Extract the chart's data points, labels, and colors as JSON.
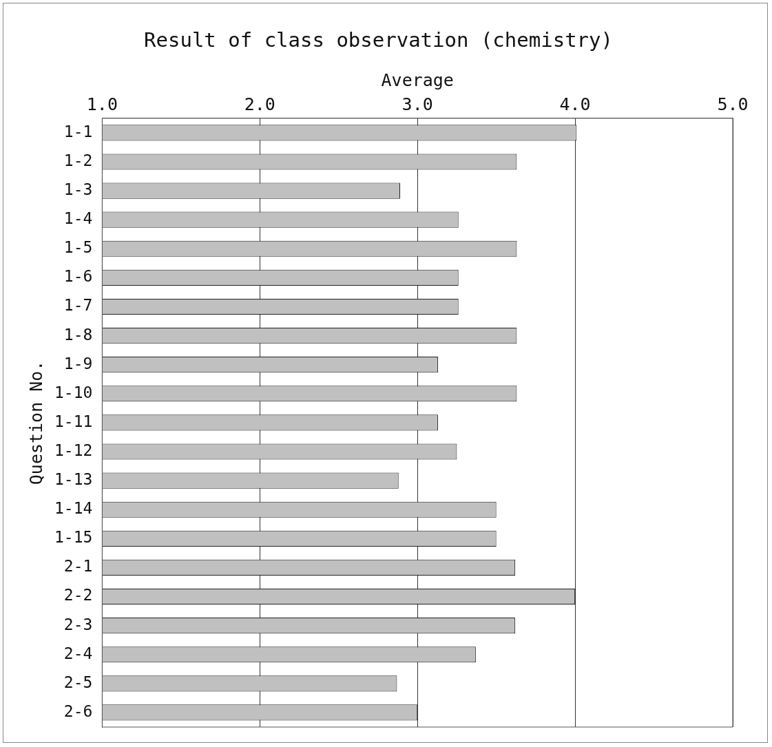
{
  "chart_data": {
    "type": "bar",
    "orientation": "horizontal",
    "title": "Result of class observation (chemistry)",
    "xlabel": "Average",
    "ylabel": "Question No.",
    "categories": [
      "1-1",
      "1-2",
      "1-3",
      "1-4",
      "1-5",
      "1-6",
      "1-7",
      "1-8",
      "1-9",
      "1-10",
      "1-11",
      "1-12",
      "1-13",
      "1-14",
      "1-15",
      "2-1",
      "2-2",
      "2-3",
      "2-4",
      "2-5",
      "2-6"
    ],
    "values": [
      4.01,
      3.63,
      2.89,
      3.26,
      3.63,
      3.26,
      3.26,
      3.63,
      3.13,
      3.63,
      3.13,
      3.25,
      2.88,
      3.5,
      3.5,
      3.62,
      4.0,
      3.62,
      3.37,
      2.87,
      3.0
    ],
    "color": "#c0c0c0",
    "xlim": [
      1,
      5
    ],
    "xticks": [
      {
        "value": 1,
        "label": "1.0"
      },
      {
        "value": 2,
        "label": "2.0"
      },
      {
        "value": 3,
        "label": "3.0"
      },
      {
        "value": 4,
        "label": "4.0"
      },
      {
        "value": 5,
        "label": "5.0"
      }
    ],
    "grid": "x",
    "legend": false
  }
}
